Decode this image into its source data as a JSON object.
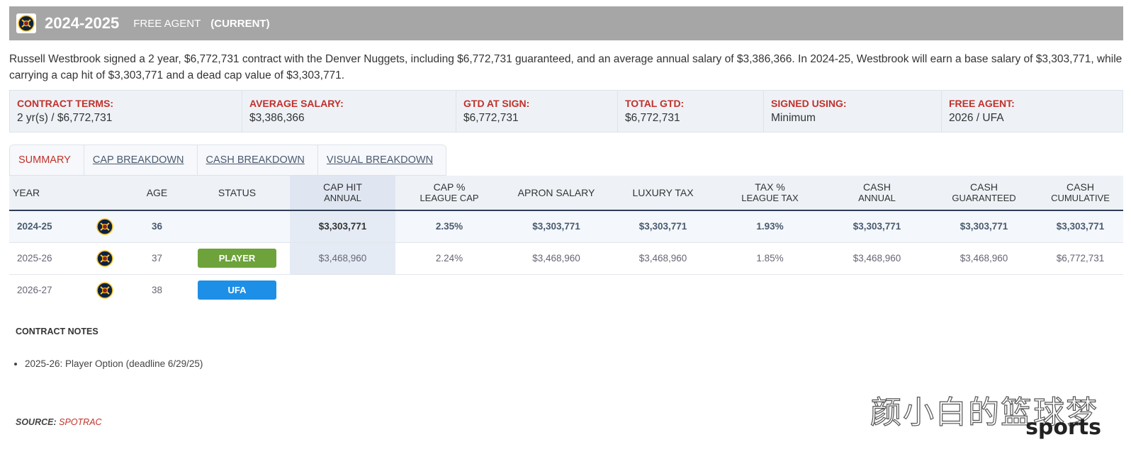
{
  "header": {
    "season": "2024-2025",
    "status_text": "FREE AGENT",
    "current_label": "(CURRENT)",
    "team_logo_icon": "nuggets-logo-icon"
  },
  "description": "Russell Westbrook signed a 2 year, $6,772,731 contract with the Denver Nuggets, including $6,772,731 guaranteed, and an average annual salary of $3,386,366. In 2024-25, Westbrook will earn a base salary of $3,303,771, while carrying a cap hit of $3,303,771 and a dead cap value of $3,303,771.",
  "terms": [
    {
      "label": "CONTRACT TERMS:",
      "value": "2 yr(s) / $6,772,731"
    },
    {
      "label": "AVERAGE SALARY:",
      "value": "$3,386,366"
    },
    {
      "label": "GTD AT SIGN:",
      "value": "$6,772,731"
    },
    {
      "label": "TOTAL GTD:",
      "value": "$6,772,731"
    },
    {
      "label": "SIGNED USING:",
      "value": "Minimum"
    },
    {
      "label": "FREE AGENT:",
      "value": "2026 / UFA"
    }
  ],
  "tabs": [
    {
      "label": "SUMMARY",
      "active": true
    },
    {
      "label": "CAP BREAKDOWN",
      "active": false
    },
    {
      "label": "CASH BREAKDOWN",
      "active": false
    },
    {
      "label": "VISUAL BREAKDOWN",
      "active": false
    }
  ],
  "table": {
    "headers": {
      "year": "YEAR",
      "age": "AGE",
      "status": "STATUS",
      "cap_hit": [
        "CAP HIT",
        "ANNUAL"
      ],
      "cap_pct": [
        "CAP %",
        "LEAGUE CAP"
      ],
      "apron": "APRON SALARY",
      "luxury": "LUXURY TAX",
      "tax_pct": [
        "TAX %",
        "LEAGUE TAX"
      ],
      "cash_annual": [
        "CASH",
        "ANNUAL"
      ],
      "cash_guaranteed": [
        "CASH",
        "GUARANTEED"
      ],
      "cash_cumulative": [
        "CASH",
        "CUMULATIVE"
      ]
    },
    "rows": [
      {
        "year": "2024-25",
        "age": "36",
        "status": "",
        "cap_hit": "$3,303,771",
        "cap_pct": "2.35%",
        "apron": "$3,303,771",
        "luxury": "$3,303,771",
        "tax_pct": "1.93%",
        "cash_annual": "$3,303,771",
        "cash_guaranteed": "$3,303,771",
        "cash_cumulative": "$3,303,771"
      },
      {
        "year": "2025-26",
        "age": "37",
        "status": "PLAYER",
        "cap_hit": "$3,468,960",
        "cap_pct": "2.24%",
        "apron": "$3,468,960",
        "luxury": "$3,468,960",
        "tax_pct": "1.85%",
        "cash_annual": "$3,468,960",
        "cash_guaranteed": "$3,468,960",
        "cash_cumulative": "$6,772,731"
      },
      {
        "year": "2026-27",
        "age": "38",
        "status": "UFA",
        "cap_hit": "",
        "cap_pct": "",
        "apron": "",
        "luxury": "",
        "tax_pct": "",
        "cash_annual": "",
        "cash_guaranteed": "",
        "cash_cumulative": ""
      }
    ]
  },
  "status_colors": {
    "player": "#6da33a",
    "ufa": "#1e8fe6"
  },
  "notes": {
    "title": "CONTRACT NOTES",
    "items": [
      "2025-26: Player Option (deadline 6/29/25)"
    ]
  },
  "source": {
    "label": "SOURCE:",
    "value": "SPOTRAC"
  },
  "watermark": {
    "cn": "颜小白的篮球梦",
    "en": "sports"
  },
  "colors": {
    "header_bg": "#a6a6a6",
    "accent_red": "#c0312b",
    "terms_bg": "#eef2f7"
  }
}
